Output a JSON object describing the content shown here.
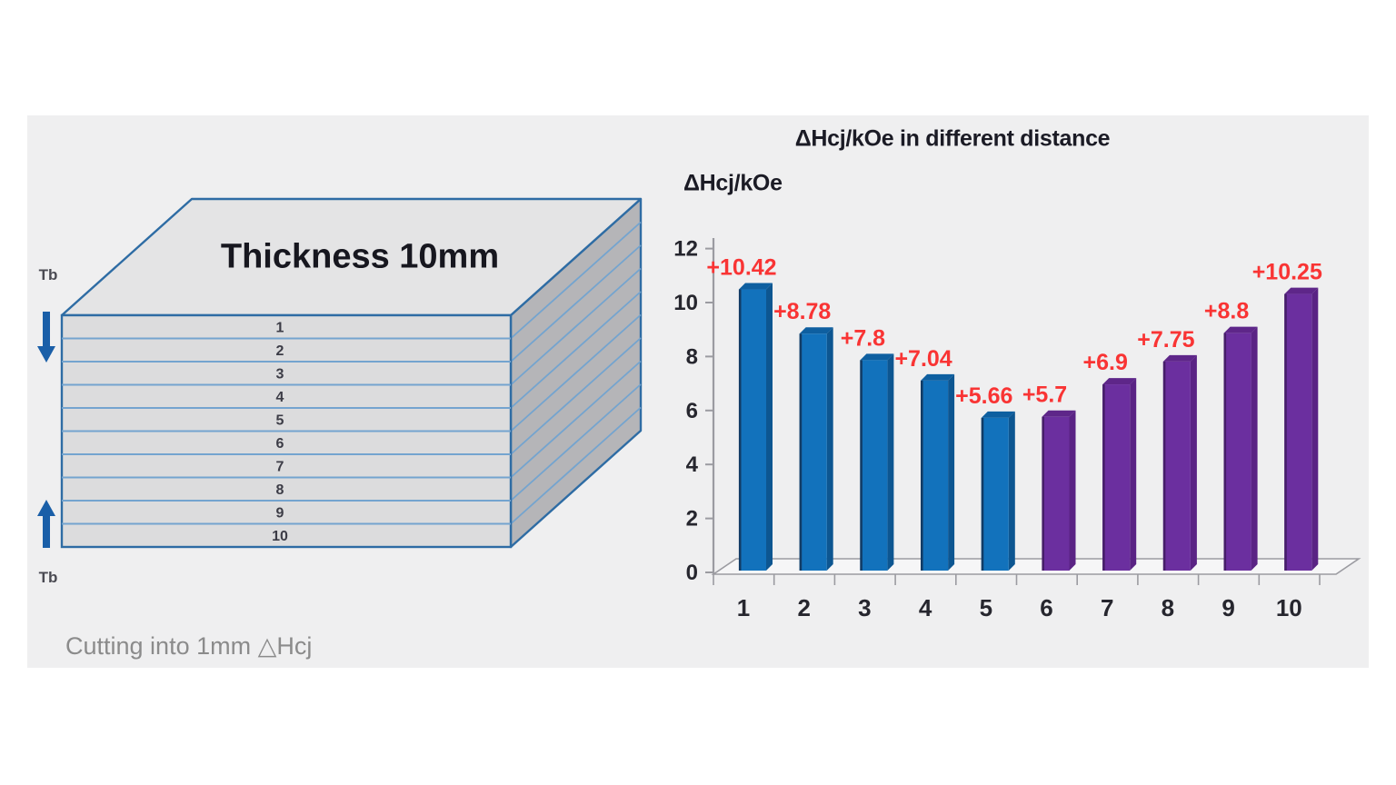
{
  "panel": {
    "background": "#efeff0",
    "page_background": "#ffffff"
  },
  "diagram": {
    "title": "Thickness 10mm",
    "top_arrow_label": "Tb",
    "bottom_arrow_label": "Tb",
    "layers": [
      "1",
      "2",
      "3",
      "4",
      "5",
      "6",
      "7",
      "8",
      "9",
      "10"
    ],
    "caption": "Cutting into 1mm △Hcj",
    "colors": {
      "outline": "#2e6ca4",
      "layer_line": "#74a4cf",
      "front_face": "#dcdcdd",
      "top_face": "#e4e4e5",
      "side_face": "#b5b5b8",
      "arrow": "#1a5fa8",
      "layer_number": "#3c3c46",
      "tb_label": "#4a4a52",
      "caption": "#8b8b8b",
      "title": "#17171f"
    }
  },
  "chart_data": {
    "type": "bar",
    "style": "3d",
    "title": "ΔHcj/kOe in different distance",
    "ylabel": "ΔHcj/kOe",
    "xlabel": "",
    "categories": [
      "1",
      "2",
      "3",
      "4",
      "5",
      "6",
      "7",
      "8",
      "9",
      "10"
    ],
    "values": [
      10.42,
      8.78,
      7.8,
      7.04,
      5.66,
      5.7,
      6.9,
      7.75,
      8.8,
      10.25
    ],
    "data_labels": [
      "+10.42",
      "+8.78",
      "+7.8",
      "+7.04",
      "+5.66",
      "+5.7",
      "+6.9",
      "+7.75",
      "+8.8",
      "+10.25"
    ],
    "bar_color_keys": [
      "blue",
      "blue",
      "blue",
      "blue",
      "blue",
      "purple",
      "purple",
      "purple",
      "purple",
      "purple"
    ],
    "palette": {
      "blue": {
        "front": "#1272bc",
        "top": "#0e5fa0",
        "side": "#0d5691",
        "edge": "#123c66"
      },
      "purple": {
        "front": "#6b2f9f",
        "top": "#5e2689",
        "side": "#5a2384",
        "edge": "#461e69"
      }
    },
    "ylim": [
      0,
      12
    ],
    "yticks": [
      0,
      2,
      4,
      6,
      8,
      10,
      12
    ],
    "grid": false,
    "legend": false,
    "label_color": "#f93434",
    "axis_color": "#9b9ba1",
    "tick_label_color": "#26262e",
    "floor_fill": "#f6f6f7",
    "title_color": "#1b1b25"
  }
}
